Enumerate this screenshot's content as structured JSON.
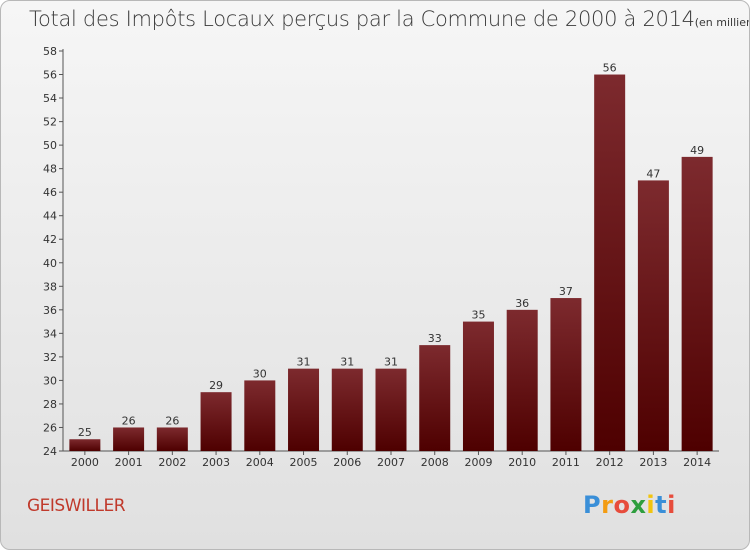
{
  "title": "Total des Impôts Locaux perçus par la Commune de 2000 à 2014",
  "unit_note": "(en milliers d'€)",
  "commune": "GEISWILLER",
  "logo": {
    "letters": [
      "P",
      "r",
      "o",
      "x",
      "i",
      "t",
      "i"
    ],
    "colors": [
      "#3a8fd8",
      "#f39c12",
      "#e74c3c",
      "#2e9e3e",
      "#f1c40f",
      "#3a8fd8",
      "#e74c3c"
    ]
  },
  "chart_data": {
    "type": "bar",
    "title": "Total des Impôts Locaux perçus par la Commune de 2000 à 2014",
    "xlabel": "",
    "ylabel": "",
    "categories": [
      "2000",
      "2001",
      "2002",
      "2003",
      "2004",
      "2005",
      "2006",
      "2007",
      "2008",
      "2009",
      "2010",
      "2011",
      "2012",
      "2013",
      "2014"
    ],
    "values": [
      25,
      26,
      26,
      29,
      30,
      31,
      31,
      31,
      33,
      35,
      36,
      37,
      56,
      47,
      49
    ],
    "ylim": [
      24,
      58
    ],
    "yticks": [
      24,
      26,
      28,
      30,
      32,
      34,
      36,
      38,
      40,
      42,
      44,
      46,
      48,
      50,
      52,
      54,
      56,
      58
    ],
    "bar_color": "#8b1a1a",
    "grid": false,
    "legend": "none"
  }
}
